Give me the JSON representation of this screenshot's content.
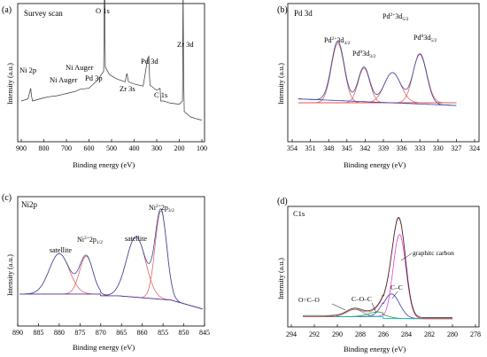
{
  "chart_data": [
    {
      "type": "line",
      "panel_label": "(a)",
      "title": "Survey scan",
      "xlabel": "Binding energy (eV)",
      "ylabel": "Intensity (a.u.)",
      "xlim": [
        900,
        100
      ],
      "xticks": [
        "900",
        "800",
        "700",
        "600",
        "500",
        "400",
        "300",
        "200",
        "100"
      ],
      "annotations": [
        "Ni 2p",
        "Ni Auger",
        "Ni Auger",
        "Pd 3p",
        "O 1s",
        "Zr 3s",
        "Pd 3d",
        "C 1s",
        "Zr 3d"
      ],
      "series": [
        {
          "values": [
            [
              900,
              0.3
            ],
            [
              870,
              0.32
            ],
            [
              858,
              0.42
            ],
            [
              855,
              0.35
            ],
            [
              850,
              0.3
            ],
            [
              800,
              0.33
            ],
            [
              775,
              0.34
            ],
            [
              740,
              0.35
            ],
            [
              720,
              0.36
            ],
            [
              700,
              0.37
            ],
            [
              680,
              0.38
            ],
            [
              660,
              0.39
            ],
            [
              640,
              0.41
            ],
            [
              600,
              0.42
            ],
            [
              560,
              0.5
            ],
            [
              545,
              0.55
            ],
            [
              535,
              0.58
            ],
            [
              531,
              1.55
            ],
            [
              528,
              0.62
            ],
            [
              510,
              0.55
            ],
            [
              480,
              0.51
            ],
            [
              440,
              0.48
            ],
            [
              432,
              0.56
            ],
            [
              425,
              0.48
            ],
            [
              400,
              0.46
            ],
            [
              360,
              0.44
            ],
            [
              340,
              0.7
            ],
            [
              335,
              0.72
            ],
            [
              330,
              0.45
            ],
            [
              300,
              0.4
            ],
            [
              285,
              0.42
            ],
            [
              282,
              0.3
            ],
            [
              270,
              0.3
            ],
            [
              240,
              0.28
            ],
            [
              200,
              0.27
            ],
            [
              186,
              0.3
            ],
            [
              183,
              1.42
            ],
            [
              181,
              0.6
            ],
            [
              178,
              0.2
            ],
            [
              150,
              0.15
            ],
            [
              120,
              0.13
            ],
            [
              100,
              0.12
            ]
          ]
        }
      ]
    },
    {
      "type": "line",
      "panel_label": "(b)",
      "title": "Pd 3d",
      "xlabel": "Binding energy (eV)",
      "ylabel": "Intensity (a.u.)",
      "xlim": [
        354,
        324
      ],
      "xticks": [
        "354",
        "351",
        "348",
        "345",
        "342",
        "339",
        "336",
        "333",
        "330",
        "327",
        "324"
      ],
      "peaks": [
        {
          "label_base": "Pd",
          "label_sup": "2+",
          "label_mid": "3d",
          "label_sub": "3/2",
          "position": 346.5
        },
        {
          "label_base": "Pd",
          "label_sup": "0",
          "label_mid": "3d",
          "label_sub": "3/2",
          "position": 342.2
        },
        {
          "label_base": "Pd",
          "label_sup": "2+",
          "label_mid": "3d",
          "label_sub": "5/2",
          "position": 337.5
        },
        {
          "label_base": "Pd",
          "label_sup": "0",
          "label_mid": "3d",
          "label_sub": "5/2",
          "position": 333.0
        }
      ]
    },
    {
      "type": "line",
      "panel_label": "(c)",
      "title": "Ni2p",
      "xlabel": "Binding energy (eV)",
      "ylabel": "Intensity (a.u.)",
      "xlim": [
        890,
        845
      ],
      "xticks": [
        "890",
        "885",
        "880",
        "875",
        "870",
        "865",
        "860",
        "855",
        "850",
        "845"
      ],
      "peaks": [
        {
          "label": "satellite",
          "position": 880.0
        },
        {
          "label_base": "Ni",
          "label_sup": "2+",
          "label_mid": "2p",
          "label_sub": "1/2",
          "position": 873.5
        },
        {
          "label": "satellite",
          "position": 861.5
        },
        {
          "label_base": "Ni",
          "label_sup": "2+",
          "label_mid": "2p",
          "label_sub": "3/2",
          "position": 855.5
        }
      ]
    },
    {
      "type": "line",
      "panel_label": "(d)",
      "title": "C1s",
      "xlabel": "Binding energy (eV)",
      "ylabel": "Intensity (a.u.)",
      "xlim": [
        294,
        278
      ],
      "xticks": [
        "294",
        "292",
        "290",
        "288",
        "286",
        "284",
        "282",
        "280",
        "278"
      ],
      "peaks": [
        {
          "label": "graphitc carbon",
          "position": 284.6
        },
        {
          "label": "C–C",
          "position": 285.3
        },
        {
          "label": "C–O–C",
          "position": 286.5
        },
        {
          "label": "O=C–O",
          "position": 288.5
        }
      ]
    }
  ]
}
